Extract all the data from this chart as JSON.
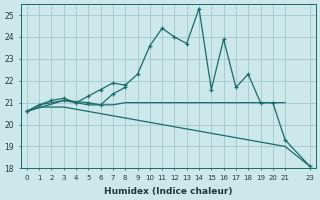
{
  "xlabel": "Humidex (Indice chaleur)",
  "background_color": "#cce8ea",
  "grid_color": "#aaccce",
  "line_color": "#1a6b6b",
  "xlim": [
    -0.5,
    23.5
  ],
  "ylim": [
    18,
    25.5
  ],
  "yticks": [
    18,
    19,
    20,
    21,
    22,
    23,
    24,
    25
  ],
  "xticks": [
    0,
    1,
    2,
    3,
    4,
    5,
    6,
    7,
    8,
    9,
    10,
    11,
    12,
    13,
    14,
    15,
    16,
    17,
    18,
    19,
    20,
    21,
    23
  ],
  "series": [
    {
      "x": [
        0,
        1,
        2,
        3,
        4,
        5,
        6,
        7,
        8,
        9,
        10,
        11,
        12,
        13,
        14,
        15,
        16,
        17,
        18,
        19,
        20,
        21,
        23
      ],
      "y": [
        20.6,
        20.9,
        21.1,
        21.2,
        21.0,
        21.3,
        21.6,
        21.9,
        21.8,
        22.3,
        23.6,
        24.4,
        24.0,
        23.7,
        25.3,
        21.6,
        23.9,
        21.7,
        22.3,
        21.0,
        21.0,
        19.3,
        18.1
      ],
      "markers": true
    },
    {
      "x": [
        0,
        1,
        2,
        3,
        4,
        5,
        6,
        7,
        8,
        9,
        10,
        11,
        12,
        13,
        14,
        15,
        16,
        17,
        18,
        19,
        20,
        21
      ],
      "y": [
        20.6,
        20.9,
        21.0,
        21.1,
        21.0,
        20.9,
        20.9,
        20.9,
        21.0,
        21.0,
        21.0,
        21.0,
        21.0,
        21.0,
        21.0,
        21.0,
        21.0,
        21.0,
        21.0,
        21.0,
        21.0,
        21.0
      ],
      "markers": false
    },
    {
      "x": [
        0,
        1,
        2,
        3,
        4,
        5,
        6,
        7,
        8,
        9,
        10,
        11,
        12,
        13,
        14,
        15,
        16,
        17,
        18,
        19,
        20,
        21,
        23
      ],
      "y": [
        20.6,
        20.8,
        20.8,
        20.8,
        20.7,
        20.6,
        20.5,
        20.4,
        20.3,
        20.2,
        20.1,
        20.0,
        19.9,
        19.8,
        19.7,
        19.6,
        19.5,
        19.4,
        19.3,
        19.2,
        19.1,
        19.0,
        18.1
      ],
      "markers": false
    },
    {
      "x": [
        0,
        3,
        5,
        6,
        7,
        8
      ],
      "y": [
        20.6,
        21.1,
        21.0,
        20.9,
        21.4,
        21.7
      ],
      "markers": true
    }
  ]
}
